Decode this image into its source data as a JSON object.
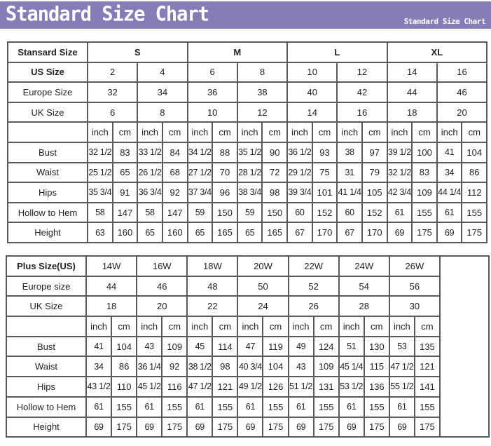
{
  "banner": {
    "title": "Standard Size Chart",
    "subtitle": "Standard Size Chart",
    "color": "#857db7"
  },
  "standard": {
    "header_label": "Stansard Size",
    "groups": [
      "S",
      "M",
      "L",
      "XL"
    ],
    "rows": [
      {
        "label": "US Size",
        "bold": true,
        "values": [
          "2",
          "4",
          "6",
          "8",
          "10",
          "12",
          "14",
          "16"
        ]
      },
      {
        "label": "Europe Size",
        "values": [
          "32",
          "34",
          "36",
          "38",
          "40",
          "42",
          "44",
          "46"
        ]
      },
      {
        "label": "UK Size",
        "values": [
          "6",
          "8",
          "10",
          "12",
          "14",
          "16",
          "18",
          "20"
        ]
      }
    ],
    "unit_labels": [
      "inch",
      "cm"
    ],
    "measurements": [
      {
        "label": "Bust",
        "values": [
          "32 1/2",
          "83",
          "33 1/2",
          "84",
          "34 1/2",
          "88",
          "35 1/2",
          "90",
          "36 1/2",
          "93",
          "38",
          "97",
          "39 1/2",
          "100",
          "41",
          "104"
        ]
      },
      {
        "label": "Waist",
        "values": [
          "25 1/2",
          "65",
          "26 1/2",
          "68",
          "27 1/2",
          "70",
          "28 1/2",
          "72",
          "29 1/2",
          "75",
          "31",
          "79",
          "32 1/2",
          "83",
          "34",
          "86"
        ]
      },
      {
        "label": "Hips",
        "values": [
          "35 3/4",
          "91",
          "36 3/4",
          "92",
          "37 3/4",
          "96",
          "38 3/4",
          "98",
          "39 3/4",
          "101",
          "41 1/4",
          "105",
          "42 3/4",
          "109",
          "44 1/4",
          "112"
        ]
      },
      {
        "label": "Hollow to Hem",
        "values": [
          "58",
          "147",
          "58",
          "147",
          "59",
          "150",
          "59",
          "150",
          "60",
          "152",
          "60",
          "152",
          "61",
          "155",
          "61",
          "155"
        ]
      },
      {
        "label": "Height",
        "values": [
          "63",
          "160",
          "65",
          "160",
          "65",
          "165",
          "65",
          "165",
          "67",
          "170",
          "67",
          "170",
          "69",
          "175",
          "69",
          "175"
        ]
      }
    ]
  },
  "plus": {
    "header_label": "Plus Size(US)",
    "sizes": [
      "14W",
      "16W",
      "18W",
      "20W",
      "22W",
      "24W",
      "26W"
    ],
    "rows": [
      {
        "label": "Europe size",
        "values": [
          "44",
          "46",
          "48",
          "50",
          "52",
          "54",
          "56"
        ]
      },
      {
        "label": "UK Size",
        "values": [
          "18",
          "20",
          "22",
          "24",
          "26",
          "28",
          "30"
        ]
      }
    ],
    "unit_labels": [
      "inch",
      "cm"
    ],
    "measurements": [
      {
        "label": "Bust",
        "values": [
          "41",
          "104",
          "43",
          "109",
          "45",
          "114",
          "47",
          "119",
          "49",
          "124",
          "51",
          "130",
          "53",
          "135"
        ]
      },
      {
        "label": "Waist",
        "values": [
          "34",
          "86",
          "36 1/4",
          "92",
          "38 1/2",
          "98",
          "40 3/4",
          "104",
          "43",
          "109",
          "45 1/4",
          "115",
          "47 1/2",
          "121"
        ]
      },
      {
        "label": "Hips",
        "values": [
          "43 1/2",
          "110",
          "45 1/2",
          "116",
          "47 1/2",
          "121",
          "49 1/2",
          "126",
          "51 1/2",
          "131",
          "53 1/2",
          "136",
          "55 1/2",
          "141"
        ]
      },
      {
        "label": "Hollow to Hem",
        "values": [
          "61",
          "155",
          "61",
          "155",
          "61",
          "155",
          "61",
          "155",
          "61",
          "155",
          "61",
          "155",
          "61",
          "155"
        ]
      },
      {
        "label": "Height",
        "values": [
          "69",
          "175",
          "69",
          "175",
          "69",
          "175",
          "69",
          "175",
          "69",
          "175",
          "69",
          "175",
          "69",
          "175"
        ]
      }
    ]
  }
}
